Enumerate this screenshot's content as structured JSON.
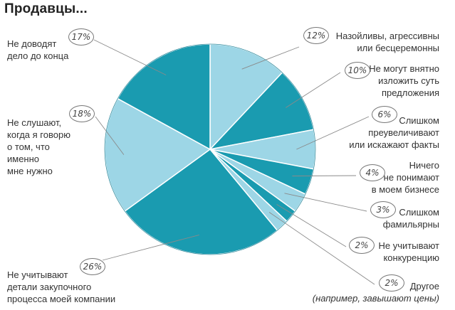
{
  "title": "Продавцы...",
  "colors": {
    "dark": "#1a9bb0",
    "light": "#9dd6e6",
    "edge": "#ffffff",
    "leader": "#8a8a8a"
  },
  "chart_data": {
    "type": "pie",
    "title": "Продавцы...",
    "start": "top, clockwise",
    "slices": [
      {
        "pct": "12%",
        "value": 12,
        "shade": "light",
        "label": "Назойливы, агрессивны\nили бесцеремонны"
      },
      {
        "pct": "10%",
        "value": 10,
        "shade": "dark",
        "label": "Не могут внятно\nизложить суть\nпредложения"
      },
      {
        "pct": "6%",
        "value": 6,
        "shade": "light",
        "label": "Слишком\nпреувеличивают\nили искажают факты"
      },
      {
        "pct": "4%",
        "value": 4,
        "shade": "dark",
        "label": "Ничего\nне понимают\nв моем бизнесе"
      },
      {
        "pct": "3%",
        "value": 3,
        "shade": "light",
        "label": "Слишком\nфамильярны"
      },
      {
        "pct": "2%",
        "value": 2,
        "shade": "dark",
        "label": "Не учитывают\nконкуренцию"
      },
      {
        "pct": "2%",
        "value": 2,
        "shade": "light",
        "label": "Другое",
        "note": "(например, завышают цены)"
      },
      {
        "pct": "26%",
        "value": 26,
        "shade": "dark",
        "label": "Не учитывают\nдетали закупочного\nпроцесса моей компании"
      },
      {
        "pct": "18%",
        "value": 18,
        "shade": "light",
        "label": "Не слушают,\nкогда я говорю\nо том, что\nименно\nмне нужно"
      },
      {
        "pct": "17%",
        "value": 17,
        "shade": "dark",
        "label": "Не доводят\nдело до конца"
      }
    ]
  }
}
